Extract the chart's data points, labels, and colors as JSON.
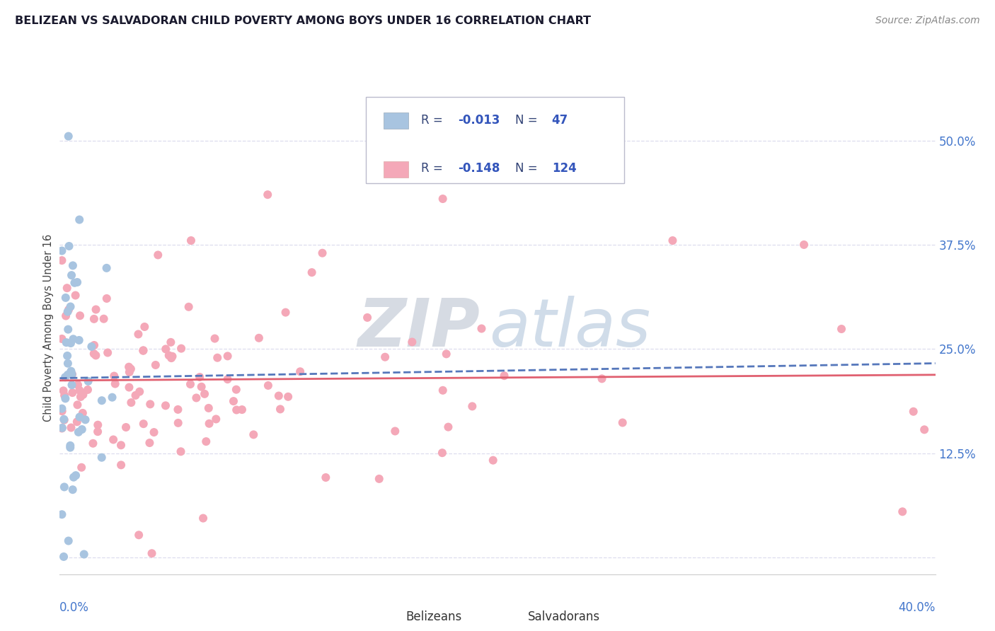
{
  "title": "BELIZEAN VS SALVADORAN CHILD POVERTY AMONG BOYS UNDER 16 CORRELATION CHART",
  "source": "Source: ZipAtlas.com",
  "ylabel": "Child Poverty Among Boys Under 16",
  "xlim": [
    0.0,
    0.4
  ],
  "ylim": [
    -0.02,
    0.57
  ],
  "belizean_R": -0.013,
  "belizean_N": 47,
  "salvadoran_R": -0.148,
  "salvadoran_N": 124,
  "belizean_color": "#a8c4e0",
  "salvadoran_color": "#f4a8b8",
  "belizean_line_color": "#5577bb",
  "salvadoran_line_color": "#e06070",
  "text_blue": "#3355bb",
  "text_dark": "#334477",
  "watermark_ZIP_color": "#c8cfe0",
  "watermark_atlas_color": "#99b8d8",
  "background_color": "#ffffff",
  "grid_color": "#ddddee",
  "ytick_color": "#4477cc",
  "xtick_color": "#4477cc"
}
